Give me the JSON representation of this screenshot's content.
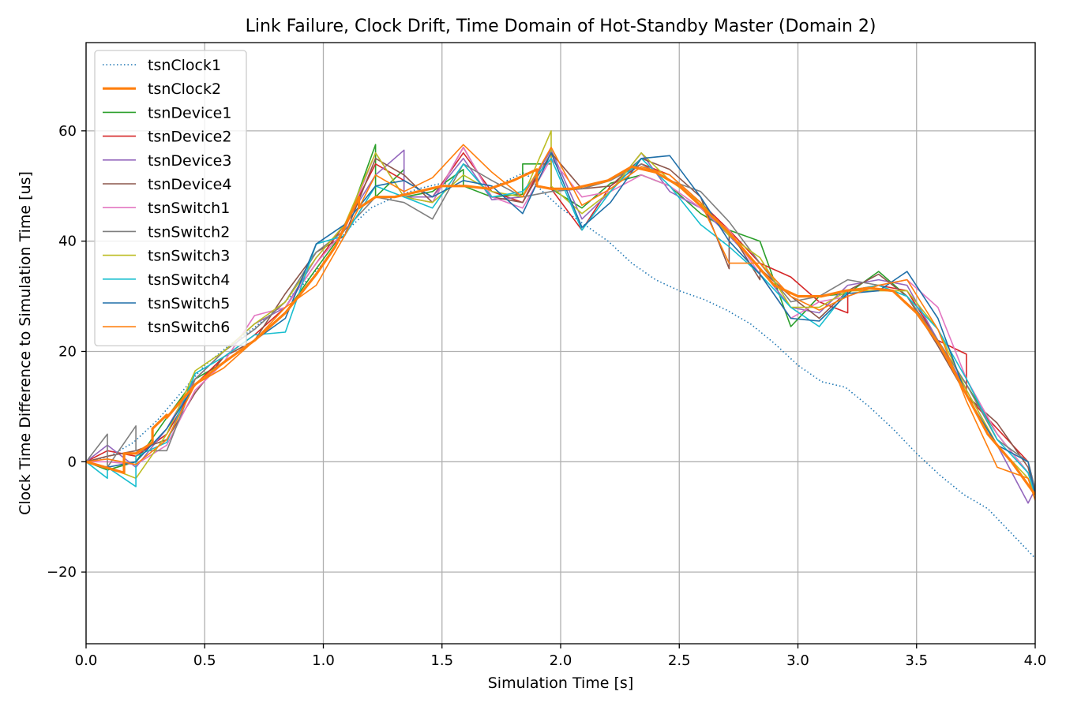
{
  "chart_data": {
    "type": "line",
    "title": "Link Failure, Clock Drift, Time Domain of Hot-Standby Master (Domain 2)",
    "xlabel": "Simulation Time [s]",
    "ylabel": "Clock Time Difference to Simulation Time [us]",
    "xlim": [
      0,
      4.0
    ],
    "ylim": [
      -33,
      76
    ],
    "xticks": [
      0.0,
      0.5,
      1.0,
      1.5,
      2.0,
      2.5,
      3.0,
      3.5,
      4.0
    ],
    "xtick_labels": [
      "0.0",
      "0.5",
      "1.0",
      "1.5",
      "2.0",
      "2.5",
      "3.0",
      "3.5",
      "4.0"
    ],
    "yticks": [
      -20,
      0,
      20,
      40,
      60
    ],
    "ytick_labels": [
      "−20",
      "0",
      "20",
      "40",
      "60"
    ],
    "grid": true,
    "legend_position": "upper-left",
    "series": [
      {
        "name": "tsnClock1",
        "color": "#1f77b4",
        "style": "dotted",
        "x": [
          0,
          0.1,
          0.2,
          0.3,
          0.4,
          0.5,
          0.6,
          0.7,
          0.8,
          0.9,
          1.0,
          1.1,
          1.2,
          1.3,
          1.4,
          1.5,
          1.6,
          1.7,
          1.8,
          1.85,
          1.9,
          2.0,
          2.1,
          2.2,
          2.3,
          2.4,
          2.5,
          2.6,
          2.7,
          2.8,
          2.9,
          3.0,
          3.1,
          3.2,
          3.3,
          3.4,
          3.5,
          3.6,
          3.7,
          3.8,
          3.9,
          4.0
        ],
        "y": [
          0,
          1.0,
          3.5,
          7.5,
          12.5,
          17.5,
          21.0,
          24.0,
          27.5,
          31.5,
          36.0,
          42.0,
          46.0,
          48.0,
          49.5,
          50.5,
          50.0,
          49.5,
          51.5,
          52.5,
          50.0,
          46.0,
          43.0,
          40.0,
          36.0,
          33.0,
          31.0,
          29.5,
          27.5,
          25.0,
          21.5,
          17.5,
          14.5,
          13.5,
          10.0,
          6.0,
          1.5,
          -2.5,
          -6.0,
          -8.5,
          -13.0,
          -17.5
        ]
      },
      {
        "name": "tsnClock2",
        "color": "#ff7f0e",
        "style": "solid",
        "x": [
          0,
          0.08,
          0.16,
          0.16,
          0.21,
          0.28,
          0.28,
          0.34,
          0.34,
          0.46,
          0.58,
          0.71,
          0.84,
          0.97,
          1.05,
          1.15,
          1.15,
          1.22,
          1.3,
          1.4,
          1.5,
          1.6,
          1.7,
          1.8,
          1.9,
          1.9,
          1.96,
          2.05,
          2.2,
          2.3,
          2.4,
          2.5,
          2.6,
          2.7,
          2.8,
          2.9,
          3.0,
          3.1,
          3.2,
          3.3,
          3.4,
          3.5,
          3.6,
          3.7,
          3.8,
          3.9,
          4.0
        ],
        "y": [
          0,
          -1,
          -2,
          1.5,
          1.5,
          3.5,
          6,
          8.5,
          8,
          14,
          18,
          22,
          27,
          34,
          39,
          48,
          46,
          48,
          48,
          49,
          50,
          50,
          49.5,
          51,
          53,
          50,
          49.5,
          49.5,
          51,
          53.5,
          52.5,
          50,
          46,
          42,
          37,
          32,
          30,
          30,
          31,
          31.5,
          31,
          27,
          21,
          13,
          5,
          0,
          -6
        ]
      },
      {
        "name": "tsnDevice1",
        "color": "#2ca02c",
        "style": "solid",
        "x": [
          0,
          0.09,
          0.21,
          0.34,
          0.46,
          0.58,
          0.71,
          0.84,
          0.97,
          1.09,
          1.22,
          1.22,
          1.34,
          1.34,
          1.46,
          1.59,
          1.59,
          1.71,
          1.84,
          1.84,
          1.96,
          1.96,
          2.09,
          2.21,
          2.34,
          2.46,
          2.59,
          2.71,
          2.84,
          2.97,
          3.09,
          3.21,
          3.34,
          3.46,
          3.59,
          3.71,
          3.84,
          3.97,
          4.0
        ],
        "y": [
          0,
          -1.5,
          0,
          8,
          15,
          18,
          22,
          27,
          35,
          42,
          57.5,
          48,
          53,
          48,
          49,
          53,
          50,
          48,
          48.5,
          54,
          54,
          49.5,
          46,
          50.5,
          52,
          50,
          45,
          42,
          40,
          24.5,
          30,
          30.5,
          34.5,
          30,
          22,
          14,
          5,
          -2,
          -6
        ]
      },
      {
        "name": "tsnDevice2",
        "color": "#d62728",
        "style": "solid",
        "x": [
          0,
          0.09,
          0.21,
          0.34,
          0.46,
          0.58,
          0.71,
          0.84,
          0.97,
          1.09,
          1.22,
          1.34,
          1.46,
          1.59,
          1.71,
          1.84,
          1.96,
          1.96,
          2.09,
          2.21,
          2.34,
          2.46,
          2.59,
          2.71,
          2.84,
          2.97,
          3.09,
          3.21,
          3.21,
          3.34,
          3.46,
          3.59,
          3.71,
          3.71,
          3.84,
          3.97,
          4.0
        ],
        "y": [
          0,
          2,
          1,
          5,
          14,
          19,
          23,
          28,
          36,
          43,
          54,
          51,
          48,
          56,
          49,
          47,
          57,
          49.5,
          42,
          50,
          54,
          52,
          47,
          42,
          36,
          33.5,
          29,
          27,
          31,
          32,
          31,
          22,
          19.5,
          12,
          6,
          0,
          -5
        ]
      },
      {
        "name": "tsnDevice3",
        "color": "#9467bd",
        "style": "solid",
        "x": [
          0,
          0.09,
          0.21,
          0.34,
          0.46,
          0.58,
          0.71,
          0.84,
          0.97,
          1.09,
          1.22,
          1.34,
          1.34,
          1.46,
          1.59,
          1.71,
          1.84,
          1.96,
          2.09,
          2.21,
          2.34,
          2.46,
          2.59,
          2.71,
          2.84,
          2.97,
          3.09,
          3.21,
          3.34,
          3.46,
          3.59,
          3.71,
          3.84,
          3.97,
          4.0
        ],
        "y": [
          0,
          3,
          -1,
          6,
          15,
          20,
          25,
          28,
          37,
          43,
          52,
          56.5,
          48,
          48,
          55,
          47.5,
          48,
          56.5,
          44,
          49,
          56,
          49,
          46,
          41,
          35,
          28,
          27,
          32,
          33,
          32,
          22,
          13,
          3,
          -7.5,
          -5
        ]
      },
      {
        "name": "tsnDevice4",
        "color": "#8c564b",
        "style": "solid",
        "x": [
          0,
          0.09,
          0.21,
          0.34,
          0.46,
          0.58,
          0.71,
          0.84,
          0.97,
          1.09,
          1.22,
          1.34,
          1.46,
          1.59,
          1.71,
          1.84,
          1.96,
          2.09,
          2.21,
          2.34,
          2.46,
          2.59,
          2.71,
          2.71,
          2.84,
          2.84,
          2.97,
          3.09,
          3.21,
          3.34,
          3.46,
          3.59,
          3.71,
          3.84,
          3.97,
          4.0
        ],
        "y": [
          0,
          1,
          2,
          4,
          12.5,
          19,
          22,
          30.5,
          38,
          41,
          55,
          52,
          47,
          57,
          48,
          47,
          56,
          49.5,
          50,
          55,
          53,
          48,
          35,
          42,
          33,
          35,
          30,
          26,
          31,
          34,
          30,
          21,
          12,
          7,
          -1,
          -6
        ]
      },
      {
        "name": "tsnSwitch1",
        "color": "#e377c2",
        "style": "solid",
        "x": [
          0,
          0.09,
          0.21,
          0.34,
          0.46,
          0.58,
          0.71,
          0.84,
          0.97,
          1.09,
          1.22,
          1.34,
          1.46,
          1.59,
          1.71,
          1.84,
          1.96,
          2.09,
          2.21,
          2.34,
          2.46,
          2.59,
          2.71,
          2.84,
          2.97,
          3.09,
          3.21,
          3.34,
          3.46,
          3.59,
          3.71,
          3.84,
          3.97,
          4.0
        ],
        "y": [
          0,
          0,
          -0.5,
          3,
          13,
          18,
          26.5,
          28,
          36,
          42,
          56,
          48,
          47,
          57,
          48,
          46,
          55,
          48,
          49,
          52,
          50,
          46,
          42,
          34,
          26,
          29,
          30,
          32,
          33,
          28,
          15,
          5,
          -2,
          -6
        ]
      },
      {
        "name": "tsnSwitch2",
        "color": "#7f7f7f",
        "style": "solid",
        "x": [
          0,
          0.09,
          0.09,
          0.21,
          0.21,
          0.34,
          0.46,
          0.58,
          0.71,
          0.84,
          0.97,
          1.09,
          1.22,
          1.34,
          1.46,
          1.59,
          1.71,
          1.84,
          1.96,
          2.09,
          2.21,
          2.34,
          2.46,
          2.59,
          2.71,
          2.84,
          2.97,
          3.09,
          3.21,
          3.34,
          3.46,
          3.59,
          3.71,
          3.84,
          3.97,
          4.0
        ],
        "y": [
          0,
          5,
          -1,
          6.5,
          2,
          2,
          15,
          20,
          24,
          29,
          38,
          42,
          48,
          47,
          44,
          54,
          51,
          48,
          49,
          49.5,
          51,
          54,
          51,
          49,
          43.5,
          36,
          29,
          30,
          33,
          32,
          30,
          22,
          14,
          4,
          0,
          -5
        ]
      },
      {
        "name": "tsnSwitch3",
        "color": "#bcbd22",
        "style": "solid",
        "x": [
          0,
          0.09,
          0.21,
          0.34,
          0.46,
          0.58,
          0.71,
          0.84,
          0.97,
          1.09,
          1.22,
          1.34,
          1.46,
          1.59,
          1.71,
          1.84,
          1.96,
          1.96,
          2.09,
          2.21,
          2.34,
          2.46,
          2.59,
          2.71,
          2.84,
          2.97,
          3.09,
          3.21,
          3.34,
          3.46,
          3.59,
          3.71,
          3.84,
          3.97,
          4.0
        ],
        "y": [
          0,
          -1,
          -3,
          5,
          16.5,
          20,
          25,
          29,
          37,
          43,
          56,
          48,
          47,
          52,
          49,
          48,
          60,
          50,
          45,
          49,
          56,
          51,
          47,
          41,
          37,
          28,
          28,
          31,
          31,
          31,
          24,
          13,
          3,
          -3,
          -6
        ]
      },
      {
        "name": "tsnSwitch4",
        "color": "#17becf",
        "style": "solid",
        "x": [
          0,
          0.09,
          0.09,
          0.21,
          0.21,
          0.34,
          0.46,
          0.58,
          0.71,
          0.84,
          0.97,
          1.09,
          1.22,
          1.34,
          1.46,
          1.59,
          1.71,
          1.84,
          1.96,
          2.09,
          2.21,
          2.34,
          2.46,
          2.59,
          2.71,
          2.84,
          2.97,
          3.09,
          3.21,
          3.34,
          3.46,
          3.59,
          3.71,
          3.84,
          3.97,
          4.0
        ],
        "y": [
          0,
          -3,
          -1,
          -4.5,
          1,
          3.5,
          16,
          19,
          23,
          23.5,
          39.5,
          41,
          50,
          48,
          46,
          54,
          48,
          49,
          55,
          42,
          49,
          55,
          50,
          43,
          39,
          34,
          28,
          24.5,
          31,
          32,
          30,
          24,
          15,
          4,
          -2,
          -6
        ]
      },
      {
        "name": "tsnSwitch5",
        "color": "#1f6fa8",
        "style": "solid",
        "x": [
          0,
          0.09,
          0.21,
          0.34,
          0.46,
          0.58,
          0.71,
          0.84,
          0.97,
          1.09,
          1.22,
          1.34,
          1.46,
          1.59,
          1.71,
          1.84,
          1.96,
          2.09,
          2.21,
          2.34,
          2.46,
          2.59,
          2.71,
          2.84,
          2.97,
          3.09,
          3.21,
          3.34,
          3.46,
          3.59,
          3.71,
          3.84,
          3.97,
          4.0
        ],
        "y": [
          0,
          -1,
          0,
          6,
          14,
          18,
          22,
          26,
          39.5,
          43,
          50,
          51,
          48,
          51,
          50,
          45,
          56,
          42.5,
          47,
          55,
          55.5,
          48,
          40,
          34,
          26,
          25.5,
          30.5,
          31,
          34.5,
          26,
          12,
          3,
          0,
          -6
        ]
      },
      {
        "name": "tsnSwitch6",
        "color": "#ff7f0e",
        "style": "solid-thin",
        "x": [
          0,
          0.09,
          0.21,
          0.34,
          0.46,
          0.58,
          0.71,
          0.84,
          0.97,
          1.09,
          1.22,
          1.34,
          1.46,
          1.59,
          1.71,
          1.84,
          1.96,
          2.09,
          2.21,
          2.34,
          2.46,
          2.59,
          2.71,
          2.84,
          2.97,
          3.09,
          3.21,
          3.34,
          3.46,
          3.59,
          3.71,
          3.84,
          3.97,
          4.0
        ],
        "y": [
          0,
          0.5,
          -0.5,
          4,
          14,
          17,
          22,
          28,
          32,
          41,
          52,
          49,
          51.5,
          57.5,
          52.5,
          48,
          57,
          46.5,
          49.5,
          53.5,
          52,
          47,
          36,
          36,
          30,
          27.5,
          30,
          32,
          33,
          24,
          11,
          -1,
          -3,
          -7
        ]
      }
    ]
  }
}
